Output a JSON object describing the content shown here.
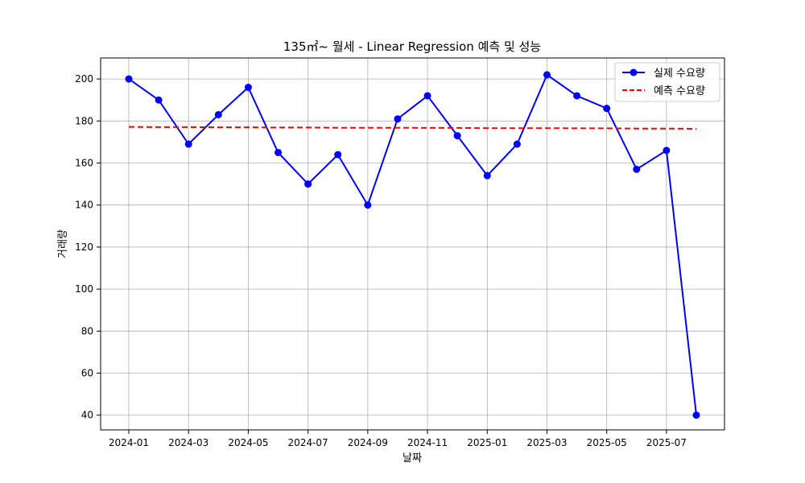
{
  "chart_data": {
    "type": "line",
    "title": "135㎡~ 월세 - Linear Regression 예측 및 성능",
    "xlabel": "날짜",
    "ylabel": "거래량",
    "x": [
      "2024-01",
      "2024-02",
      "2024-03",
      "2024-04",
      "2024-05",
      "2024-06",
      "2024-07",
      "2024-08",
      "2024-09",
      "2024-10",
      "2024-11",
      "2024-12",
      "2025-01",
      "2025-02",
      "2025-03",
      "2025-04",
      "2025-05",
      "2025-06",
      "2025-07",
      "2025-08"
    ],
    "x_ticks": [
      "2024-01",
      "2024-03",
      "2024-05",
      "2024-07",
      "2024-09",
      "2024-11",
      "2025-01",
      "2025-03",
      "2025-05",
      "2025-07"
    ],
    "y_ticks": [
      40,
      60,
      80,
      100,
      120,
      140,
      160,
      180,
      200
    ],
    "ylim": [
      33,
      210
    ],
    "grid": true,
    "legend_position": "top-right",
    "series": [
      {
        "name": "실제 수요량",
        "style": "solid-marker",
        "color": "#0000ff",
        "values": [
          200,
          190,
          169,
          183,
          196,
          165,
          150,
          164,
          140,
          181,
          192,
          173,
          154,
          169,
          202,
          192,
          186,
          157,
          166,
          40
        ]
      },
      {
        "name": "예측 수요량",
        "style": "dashed",
        "color": "#ff0000",
        "values": [
          177.2,
          177.1,
          177.1,
          177.0,
          177.0,
          176.9,
          176.9,
          176.8,
          176.8,
          176.8,
          176.7,
          176.7,
          176.6,
          176.6,
          176.6,
          176.5,
          176.5,
          176.4,
          176.4,
          176.3
        ]
      }
    ]
  }
}
